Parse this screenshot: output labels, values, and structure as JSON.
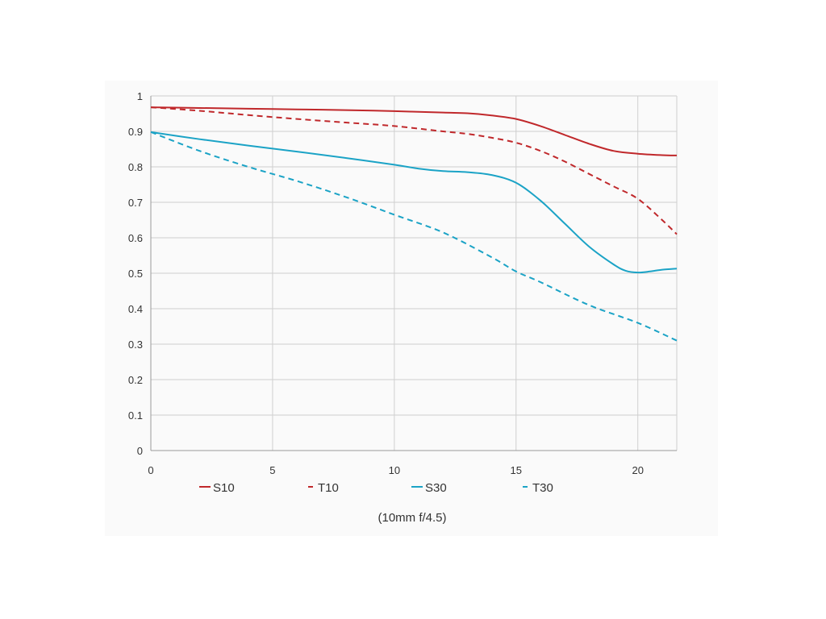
{
  "chart_data": {
    "type": "line",
    "title": "",
    "xlabel": "",
    "ylabel": "",
    "caption": "(10mm f/4.5)",
    "xlim": [
      0,
      21.6
    ],
    "ylim": [
      0,
      1
    ],
    "x_ticks": [
      "0",
      "5",
      "10",
      "15",
      "20"
    ],
    "y_ticks": [
      "0",
      "0.1",
      "0.2",
      "0.3",
      "0.4",
      "0.5",
      "0.6",
      "0.7",
      "0.8",
      "0.9",
      "1"
    ],
    "grid": true,
    "legend_position": "bottom",
    "series": [
      {
        "name": "S10",
        "color": "#c0282b",
        "style": "solid",
        "x": [
          0,
          2,
          4,
          6,
          8,
          10,
          12,
          13,
          14,
          15,
          16,
          17,
          18,
          19,
          20,
          21,
          21.6
        ],
        "y": [
          0.968,
          0.966,
          0.964,
          0.962,
          0.96,
          0.957,
          0.953,
          0.951,
          0.945,
          0.935,
          0.915,
          0.89,
          0.865,
          0.845,
          0.837,
          0.833,
          0.832
        ]
      },
      {
        "name": "T10",
        "color": "#c0282b",
        "style": "dashed",
        "x": [
          0,
          2,
          4,
          6,
          8,
          10,
          12,
          13,
          14,
          15,
          16,
          17,
          18,
          19,
          20,
          21,
          21.6
        ],
        "y": [
          0.968,
          0.958,
          0.946,
          0.935,
          0.925,
          0.915,
          0.9,
          0.893,
          0.882,
          0.868,
          0.845,
          0.815,
          0.78,
          0.745,
          0.71,
          0.65,
          0.61
        ]
      },
      {
        "name": "S30",
        "color": "#1ba3c6",
        "style": "solid",
        "x": [
          0,
          2,
          4,
          6,
          8,
          10,
          11,
          12,
          13,
          14,
          15,
          16,
          17,
          18,
          19,
          19.5,
          20,
          20.5,
          21,
          21.6
        ],
        "y": [
          0.898,
          0.878,
          0.86,
          0.843,
          0.825,
          0.806,
          0.795,
          0.788,
          0.785,
          0.777,
          0.755,
          0.705,
          0.64,
          0.575,
          0.525,
          0.507,
          0.502,
          0.505,
          0.51,
          0.513
        ]
      },
      {
        "name": "T30",
        "color": "#1ba3c6",
        "style": "dashed",
        "x": [
          0,
          2,
          4,
          6,
          8,
          10,
          12,
          14,
          15,
          16,
          18,
          20,
          21.6
        ],
        "y": [
          0.898,
          0.845,
          0.8,
          0.76,
          0.715,
          0.665,
          0.615,
          0.545,
          0.505,
          0.475,
          0.41,
          0.36,
          0.31
        ]
      }
    ]
  }
}
